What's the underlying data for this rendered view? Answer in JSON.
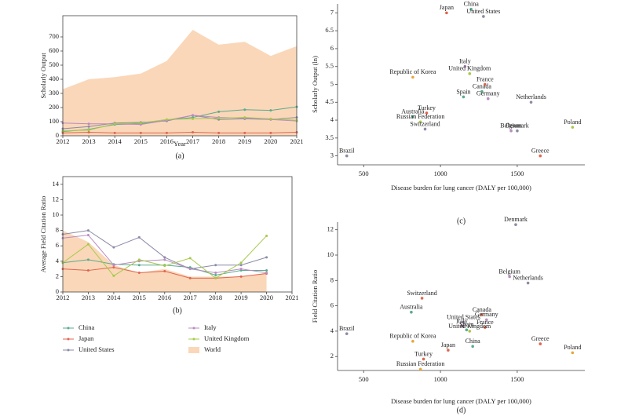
{
  "chart_data": [
    {
      "type": "line",
      "xlabel": "Year",
      "ylabel": "Scholarly Output",
      "panel": "(a)",
      "x": [
        2012,
        2013,
        2014,
        2015,
        2016,
        2017,
        2018,
        2019,
        2020,
        2021
      ],
      "xlim": [
        2012,
        2021
      ],
      "xticks": [
        2012,
        2013,
        2014,
        2015,
        2016,
        2017,
        2018,
        2019,
        2020,
        2021
      ],
      "ylim": [
        0,
        850
      ],
      "yticks": [
        0,
        100,
        200,
        300,
        400,
        500,
        600,
        700
      ],
      "series": [
        {
          "name": "World",
          "color": "#fad7b9",
          "style": "area",
          "values": [
            330,
            400,
            415,
            440,
            530,
            750,
            645,
            665,
            565,
            635
          ]
        },
        {
          "name": "China",
          "color": "#5aab8c",
          "style": "line",
          "values": [
            30,
            45,
            80,
            85,
            110,
            130,
            170,
            185,
            180,
            205
          ]
        },
        {
          "name": "Japan",
          "color": "#e0654f",
          "style": "line",
          "values": [
            20,
            25,
            20,
            20,
            20,
            25,
            20,
            20,
            20,
            25
          ]
        },
        {
          "name": "United States",
          "color": "#8a8aa8",
          "style": "line",
          "values": [
            50,
            65,
            90,
            95,
            105,
            145,
            115,
            120,
            115,
            130
          ]
        },
        {
          "name": "Italy",
          "color": "#b98bc0",
          "style": "line",
          "values": [
            90,
            85,
            85,
            80,
            110,
            145,
            130,
            125,
            115,
            105
          ]
        },
        {
          "name": "United Kingdom",
          "color": "#a6c94a",
          "style": "line",
          "values": [
            35,
            40,
            85,
            90,
            115,
            120,
            125,
            130,
            120,
            110
          ]
        }
      ]
    },
    {
      "type": "line",
      "ylabel": "Average Field Citation Ratio",
      "panel": "(b)",
      "x": [
        2012,
        2013,
        2014,
        2015,
        2016,
        2017,
        2018,
        2019,
        2020
      ],
      "xlim": [
        2012,
        2021
      ],
      "xticks": [
        2012,
        2013,
        2014,
        2015,
        2016,
        2017,
        2018,
        2019,
        2020,
        2021
      ],
      "ylim": [
        0,
        15
      ],
      "yticks": [
        0,
        2,
        4,
        6,
        8,
        10,
        12,
        14
      ],
      "series": [
        {
          "color": "#fad7b9",
          "style": "area",
          "values": [
            8,
            6.5,
            3.5,
            2.5,
            3,
            2,
            2,
            2,
            2.5
          ]
        },
        {
          "color": "#5aab8c",
          "style": "line",
          "values": [
            3.8,
            4.2,
            3.6,
            3.5,
            3.5,
            3.2,
            2.2,
            2.8,
            2.8
          ]
        },
        {
          "color": "#e0654f",
          "style": "line",
          "values": [
            3.0,
            2.8,
            3.2,
            2.5,
            2.7,
            1.8,
            1.8,
            2.0,
            2.4
          ]
        },
        {
          "color": "#8a8aa8",
          "style": "line",
          "values": [
            7.5,
            8.0,
            5.8,
            7.1,
            4.5,
            3.0,
            3.5,
            3.5,
            4.5
          ]
        },
        {
          "color": "#b98bc0",
          "style": "line",
          "values": [
            7.0,
            7.4,
            3.5,
            4.0,
            4.2,
            3.0,
            2.5,
            3.0,
            2.5
          ]
        },
        {
          "color": "#a6c94a",
          "style": "line",
          "values": [
            3.8,
            6.2,
            2.1,
            4.2,
            3.4,
            4.4,
            1.8,
            3.8,
            7.3
          ]
        }
      ]
    },
    {
      "type": "scatter",
      "xlabel": "Disease burden for lung cancer (DALY per 100,000)",
      "ylabel": "Scholarly Output (ln)",
      "panel": "(c)",
      "xlim": [
        330,
        1940
      ],
      "xticks": [
        500,
        1000,
        1500
      ],
      "ylim": [
        2.75,
        7.25
      ],
      "yticks": [
        3,
        3.5,
        4,
        4.5,
        5,
        5.5,
        6,
        6.5,
        7
      ],
      "labels": [
        "China",
        "Japan",
        "United States",
        "Italy",
        "United Kingdom",
        "Republic of Korea",
        "France",
        "Canada",
        "Spain",
        "Germany",
        "Netherlands",
        "Turkey",
        "Australia",
        "Russian Federation",
        "Switzerland",
        "Belgium",
        "Denmark",
        "Poland",
        "Brazil",
        "Greece"
      ],
      "x": [
        1200,
        1040,
        1280,
        1160,
        1190,
        820,
        1290,
        1270,
        1150,
        1310,
        1590,
        910,
        820,
        870,
        900,
        1460,
        1500,
        1860,
        390,
        1650
      ],
      "y": [
        7.1,
        7.0,
        6.9,
        5.5,
        5.3,
        5.2,
        5.0,
        4.8,
        4.65,
        4.6,
        4.5,
        4.2,
        4.1,
        3.95,
        3.75,
        3.7,
        3.7,
        3.8,
        3.0,
        3.0
      ],
      "colors": [
        "#5aab8c",
        "#e0654f",
        "#8a8aa8",
        "#b98bc0",
        "#a6c94a",
        "#e8a53a",
        "#e0654f",
        "#5aab8c",
        "#5aab8c",
        "#b98bc0",
        "#8a8aa8",
        "#e0654f",
        "#5aab8c",
        "#a6c94a",
        "#8a8aa8",
        "#b98bc0",
        "#8a8aa8",
        "#a6c94a",
        "#8a8aa8",
        "#e0654f"
      ]
    },
    {
      "type": "scatter",
      "xlabel": "Disease burden for lung cancer (DALY per 100,000)",
      "ylabel": "Field Citation Ratio",
      "panel": "(d)",
      "xlim": [
        330,
        1940
      ],
      "xticks": [
        500,
        1000,
        1500
      ],
      "ylim": [
        0.9,
        12.6
      ],
      "yticks": [
        2,
        4,
        6,
        8,
        10,
        12
      ],
      "labels": [
        "Denmark",
        "Belgium",
        "Netherlands",
        "Switzerland",
        "Australia",
        "Canada",
        "United States",
        "Italy",
        "Germany",
        "France",
        "Spain",
        "United Kingdom",
        "Brazil",
        "Republic of Korea",
        "China",
        "Japan",
        "Greece",
        "Poland",
        "Turkey",
        "Russian Federation"
      ],
      "x": [
        1490,
        1450,
        1570,
        880,
        810,
        1270,
        1150,
        1140,
        1300,
        1290,
        1170,
        1190,
        390,
        820,
        1210,
        1050,
        1650,
        1860,
        890,
        870
      ],
      "y": [
        12.4,
        8.3,
        7.8,
        6.6,
        5.5,
        5.3,
        4.7,
        4.4,
        4.9,
        4.3,
        4.1,
        4.0,
        3.8,
        3.2,
        2.8,
        2.5,
        3.0,
        2.3,
        1.8,
        1.0
      ],
      "colors": [
        "#8a8aa8",
        "#b98bc0",
        "#8a8aa8",
        "#e0654f",
        "#5aab8c",
        "#e0654f",
        "#8a8aa8",
        "#b98bc0",
        "#b98bc0",
        "#e0654f",
        "#5aab8c",
        "#a6c94a",
        "#8a8aa8",
        "#e8a53a",
        "#5aab8c",
        "#e0654f",
        "#e0654f",
        "#e8a53a",
        "#e0654f",
        "#e8a53a"
      ]
    }
  ]
}
